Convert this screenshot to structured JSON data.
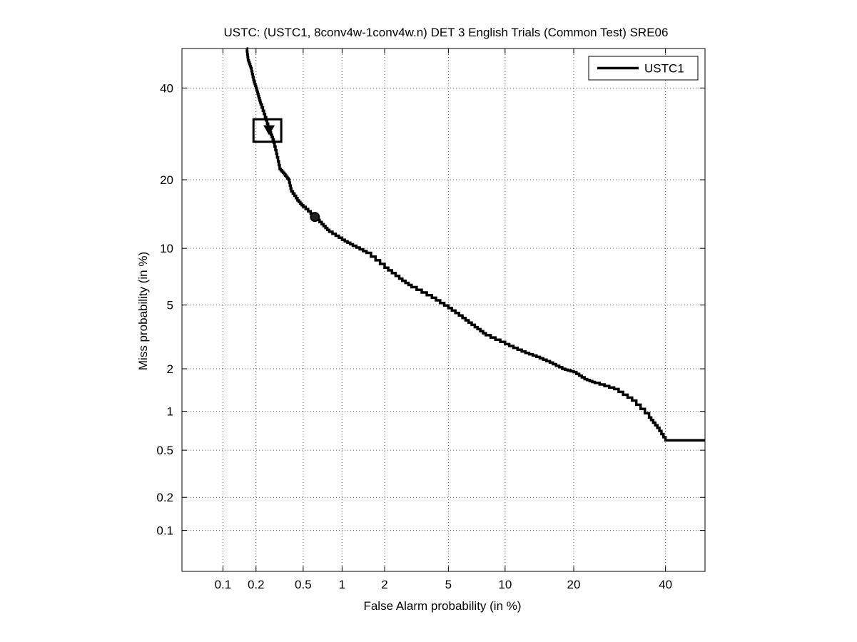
{
  "chart_data": {
    "type": "line",
    "title": "USTC: (USTC1, 8conv4w-1conv4w.n) DET 3 English Trials (Common Test) SRE06",
    "xlabel": "False Alarm probability (in %)",
    "ylabel": "Miss probability (in %)",
    "scale": "normal-deviate (probit) on both axes",
    "xlim": [
      0.04,
      50
    ],
    "ylim": [
      0.04,
      50
    ],
    "xticks": [
      0.1,
      0.2,
      0.5,
      1,
      2,
      5,
      10,
      20,
      40
    ],
    "xtick_labels": [
      "0.1",
      "0.2",
      "0.5",
      "1",
      "2",
      "5",
      "10",
      "20",
      "40"
    ],
    "yticks": [
      0.1,
      0.2,
      0.5,
      1,
      2,
      5,
      10,
      20,
      40
    ],
    "ytick_labels": [
      "0.1",
      "0.2",
      "0.5",
      "1",
      "2",
      "5",
      "10",
      "20",
      "40"
    ],
    "grid": true,
    "legend": "top-right",
    "series": [
      {
        "name": "USTC1",
        "color": "#000000",
        "points": [
          [
            0.165,
            50
          ],
          [
            0.17,
            47
          ],
          [
            0.18,
            45
          ],
          [
            0.19,
            42
          ],
          [
            0.2,
            40
          ],
          [
            0.21,
            38
          ],
          [
            0.22,
            36
          ],
          [
            0.24,
            33
          ],
          [
            0.26,
            30
          ],
          [
            0.28,
            28
          ],
          [
            0.3,
            25
          ],
          [
            0.32,
            22
          ],
          [
            0.35,
            21
          ],
          [
            0.38,
            20
          ],
          [
            0.4,
            18
          ],
          [
            0.45,
            16.5
          ],
          [
            0.5,
            15.5
          ],
          [
            0.6,
            14.2
          ],
          [
            0.7,
            13
          ],
          [
            0.8,
            12
          ],
          [
            1.0,
            11
          ],
          [
            1.2,
            10.3
          ],
          [
            1.5,
            9.5
          ],
          [
            2.0,
            8.0
          ],
          [
            2.5,
            7.0
          ],
          [
            3.0,
            6.3
          ],
          [
            4.0,
            5.5
          ],
          [
            5.0,
            4.8
          ],
          [
            6.0,
            4.2
          ],
          [
            7.0,
            3.7
          ],
          [
            8.0,
            3.3
          ],
          [
            10,
            2.9
          ],
          [
            12,
            2.6
          ],
          [
            14,
            2.4
          ],
          [
            16,
            2.2
          ],
          [
            18,
            2.0
          ],
          [
            20,
            1.9
          ],
          [
            22,
            1.7
          ],
          [
            24,
            1.6
          ],
          [
            28,
            1.45
          ],
          [
            32,
            1.2
          ],
          [
            36,
            0.9
          ],
          [
            38,
            0.75
          ],
          [
            40,
            0.6
          ],
          [
            50,
            0.6
          ]
        ]
      }
    ],
    "markers": [
      {
        "shape": "triangle-down",
        "x": 0.26,
        "y": 30
      },
      {
        "shape": "rectangle",
        "x": [
          0.19,
          0.33
        ],
        "y": [
          27.5,
          32.5
        ]
      },
      {
        "shape": "circle",
        "x": 0.62,
        "y": 14.0
      }
    ]
  }
}
